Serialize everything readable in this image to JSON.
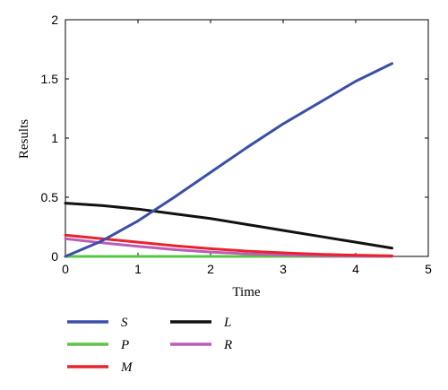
{
  "chart_data": {
    "type": "line",
    "title": "",
    "xlabel": "Time",
    "ylabel": "Results",
    "xlim": [
      0,
      5
    ],
    "ylim": [
      0,
      2
    ],
    "xticks": [
      "0",
      "1",
      "2",
      "3",
      "4",
      "5"
    ],
    "yticks": [
      "0",
      "0.5",
      "1",
      "1.5",
      "2"
    ],
    "grid": false,
    "legend_position": "bottom",
    "series": [
      {
        "name": "S",
        "color": "#3b4fa8",
        "x": [
          0,
          0.5,
          1,
          1.5,
          2,
          2.5,
          3,
          3.5,
          4,
          4.5
        ],
        "y": [
          0,
          0.13,
          0.3,
          0.5,
          0.71,
          0.92,
          1.12,
          1.3,
          1.48,
          1.63
        ]
      },
      {
        "name": "P",
        "color": "#5cc443",
        "x": [
          0,
          0.5,
          1,
          1.5,
          2,
          2.5,
          3,
          3.5,
          4,
          4.5
        ],
        "y": [
          0,
          0,
          0,
          0,
          0,
          0,
          0,
          0,
          0,
          0
        ]
      },
      {
        "name": "M",
        "color": "#e8232d",
        "x": [
          0,
          0.5,
          1,
          1.5,
          2,
          2.5,
          3,
          3.5,
          4,
          4.5
        ],
        "y": [
          0.18,
          0.15,
          0.12,
          0.09,
          0.065,
          0.045,
          0.03,
          0.018,
          0.01,
          0.005
        ]
      },
      {
        "name": "L",
        "color": "#111111",
        "x": [
          0,
          0.5,
          1,
          1.5,
          2,
          2.5,
          3,
          3.5,
          4,
          4.5
        ],
        "y": [
          0.45,
          0.43,
          0.4,
          0.36,
          0.32,
          0.27,
          0.22,
          0.17,
          0.12,
          0.07
        ]
      },
      {
        "name": "R",
        "color": "#bb5cb8",
        "x": [
          0,
          0.5,
          1,
          1.5,
          2,
          2.5,
          3,
          3.5,
          4,
          4.5
        ],
        "y": [
          0.15,
          0.115,
          0.085,
          0.058,
          0.037,
          0.022,
          0.012,
          0.006,
          0.003,
          0.001
        ]
      }
    ]
  }
}
